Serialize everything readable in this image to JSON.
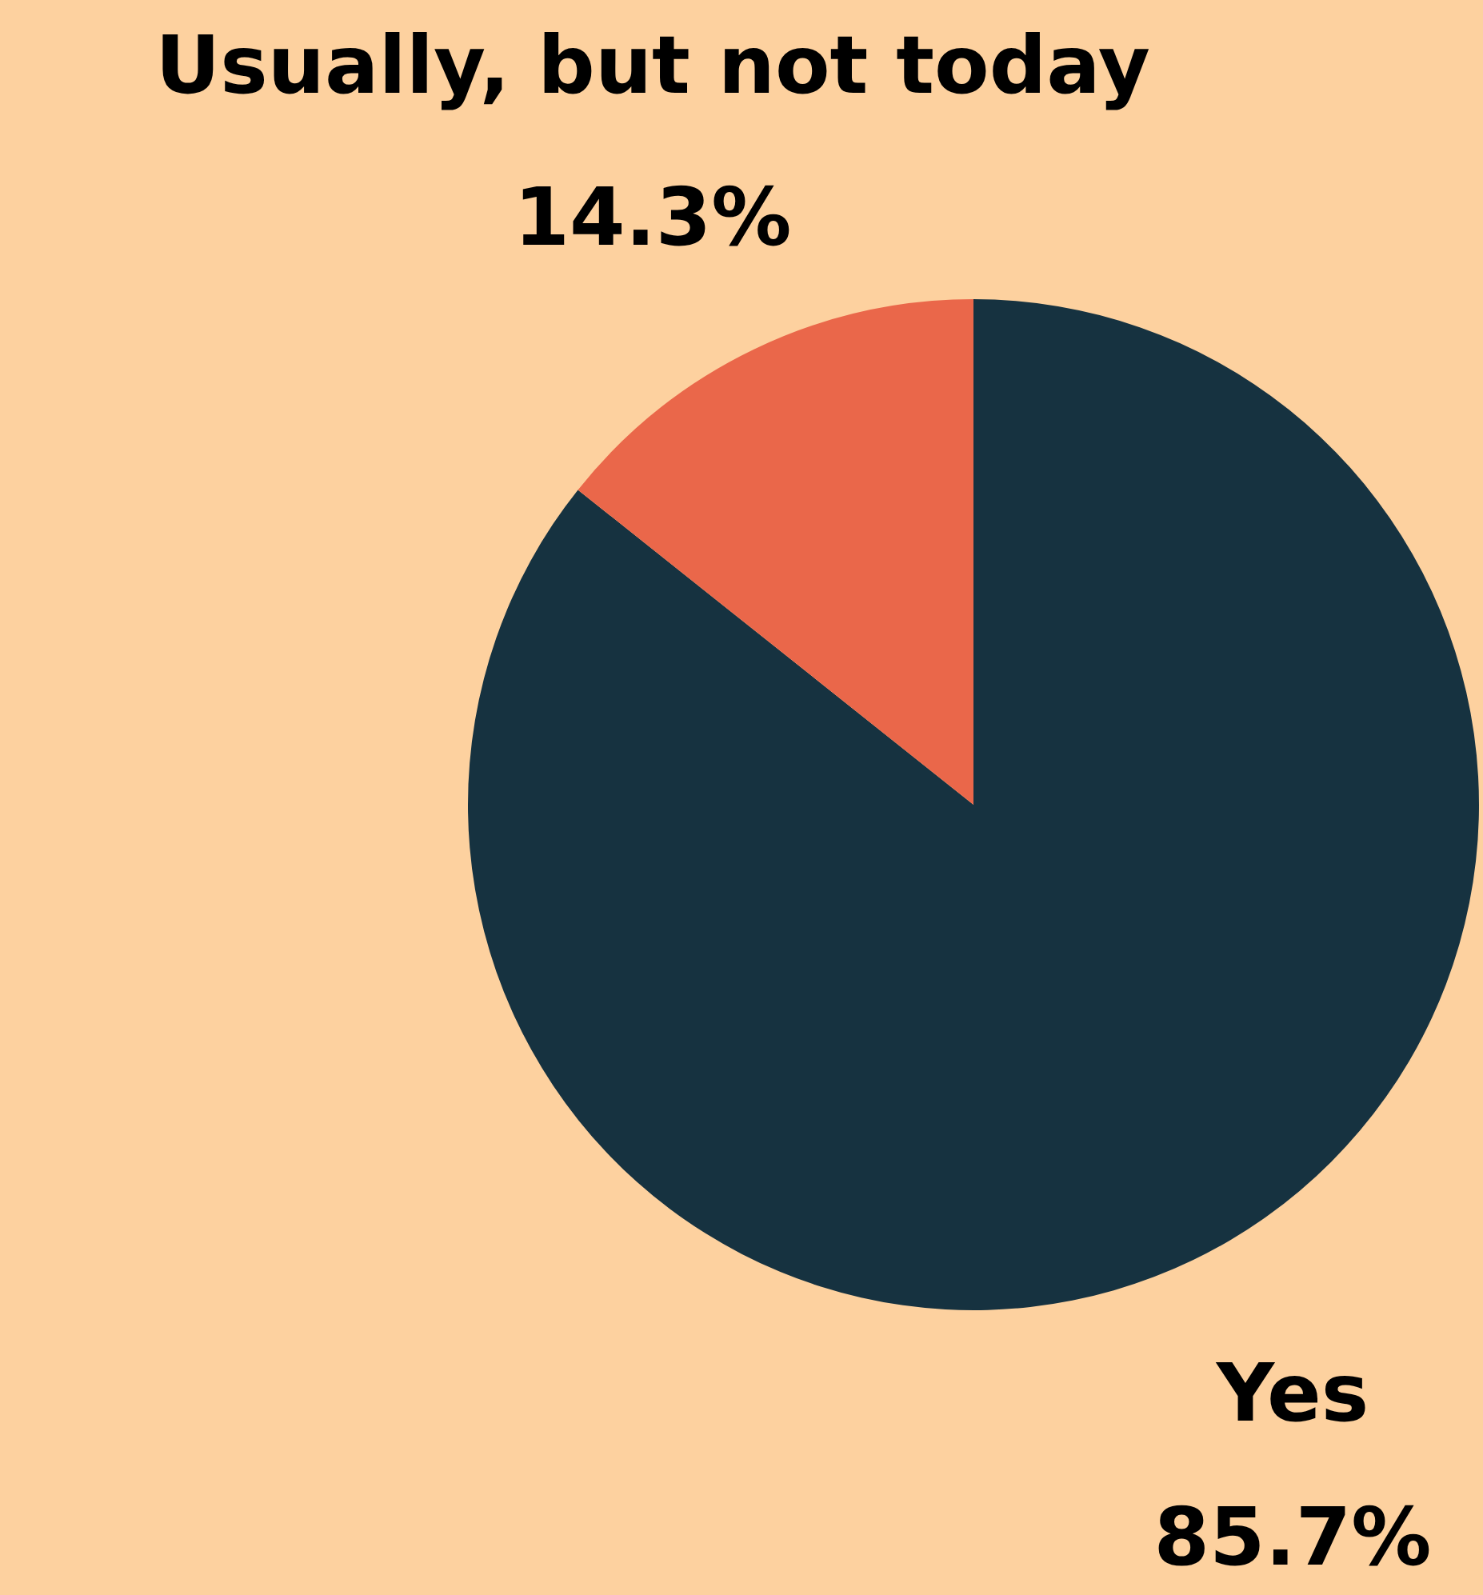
{
  "chart_data": {
    "type": "pie",
    "categories": [
      "Yes",
      "Usually, but not today"
    ],
    "values": [
      85.7,
      14.3
    ],
    "colors": [
      "#163240",
      "#ea674a"
    ],
    "value_labels": [
      "85.7%",
      "14.3%"
    ],
    "legend": false
  }
}
